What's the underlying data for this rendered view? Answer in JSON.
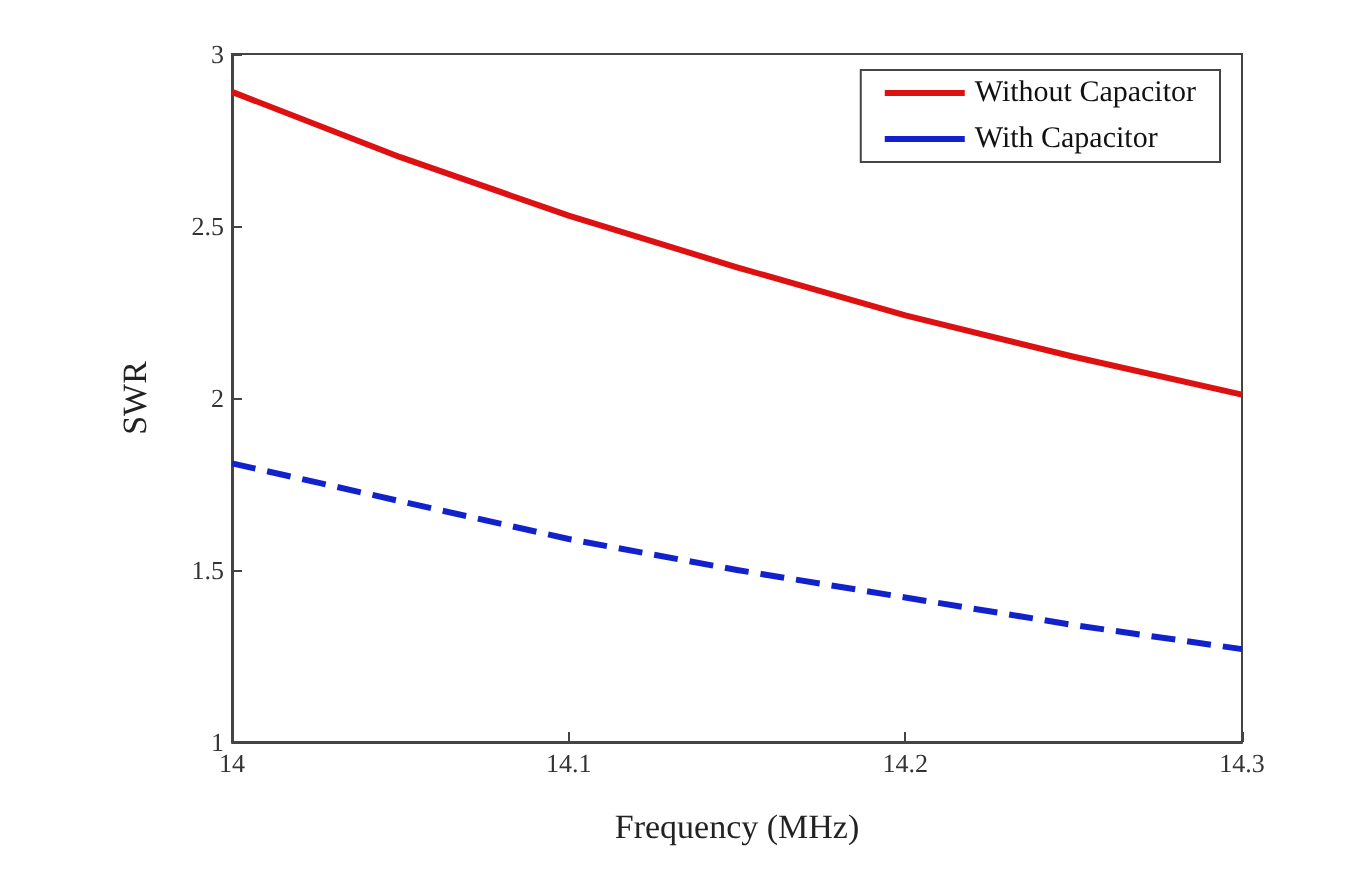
{
  "chart_data": {
    "type": "line",
    "xlabel": "Frequency (MHz)",
    "ylabel": "SWR",
    "x": [
      14,
      14.05,
      14.1,
      14.15,
      14.2,
      14.25,
      14.3
    ],
    "series": [
      {
        "name": "Without Capacitor",
        "color": "#dd1111",
        "line_style": "solid",
        "values": [
          2.89,
          2.7,
          2.53,
          2.38,
          2.24,
          2.12,
          2.01
        ]
      },
      {
        "name": "With Capacitor",
        "color": "#1122cc",
        "line_style": "dashed",
        "values": [
          1.81,
          1.7,
          1.59,
          1.5,
          1.42,
          1.34,
          1.27
        ]
      }
    ],
    "xlim": [
      14,
      14.3
    ],
    "xticks": [
      14,
      14.1,
      14.2,
      14.3
    ],
    "ylim": [
      1,
      3
    ],
    "yticks": [
      1,
      1.5,
      2,
      2.5,
      3
    ],
    "grid": false,
    "legend": "top right",
    "marker": "none"
  }
}
